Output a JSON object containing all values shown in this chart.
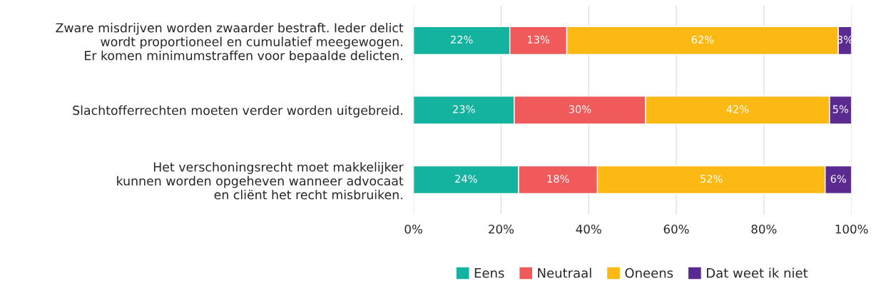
{
  "chart_data": {
    "type": "bar",
    "orientation": "horizontal",
    "stacked": true,
    "categories": [
      "Zware misdrijven worden zwaarder bestraft. Ieder delict\nwordt proportioneel en cumulatief meegewogen.\nEr komen minimumstraffen voor bepaalde delicten.",
      "Slachtofferrechten moeten verder worden uitgebreid.",
      "Het verschoningsrecht moet makkelijker\nkunnen worden opgeheven wanneer advocaat\nen cliënt het recht misbruiken."
    ],
    "series": [
      {
        "name": "Eens",
        "color": "#13b3a0",
        "values": [
          22,
          23,
          24
        ],
        "value_labels": [
          "22%",
          "23%",
          "24%"
        ]
      },
      {
        "name": "Neutraal",
        "color": "#f05a5a",
        "values": [
          13,
          30,
          18
        ],
        "value_labels": [
          "13%",
          "30%",
          "18%"
        ]
      },
      {
        "name": "Oneens",
        "color": "#fdb913",
        "values": [
          62,
          42,
          52
        ],
        "value_labels": [
          "62%",
          "42%",
          "52%"
        ]
      },
      {
        "name": "Dat weet ik niet",
        "color": "#5b2a91",
        "values": [
          3,
          5,
          6
        ],
        "value_labels": [
          "3%",
          "5%",
          "6%"
        ]
      }
    ],
    "xlim": [
      0,
      100
    ],
    "xticks": [
      {
        "value": 0,
        "label": "0%"
      },
      {
        "value": 20,
        "label": "20%"
      },
      {
        "value": 40,
        "label": "40%"
      },
      {
        "value": 60,
        "label": "60%"
      },
      {
        "value": 80,
        "label": "80%"
      },
      {
        "value": 100,
        "label": "100%"
      }
    ],
    "grid": "x",
    "legend": "bottom"
  }
}
